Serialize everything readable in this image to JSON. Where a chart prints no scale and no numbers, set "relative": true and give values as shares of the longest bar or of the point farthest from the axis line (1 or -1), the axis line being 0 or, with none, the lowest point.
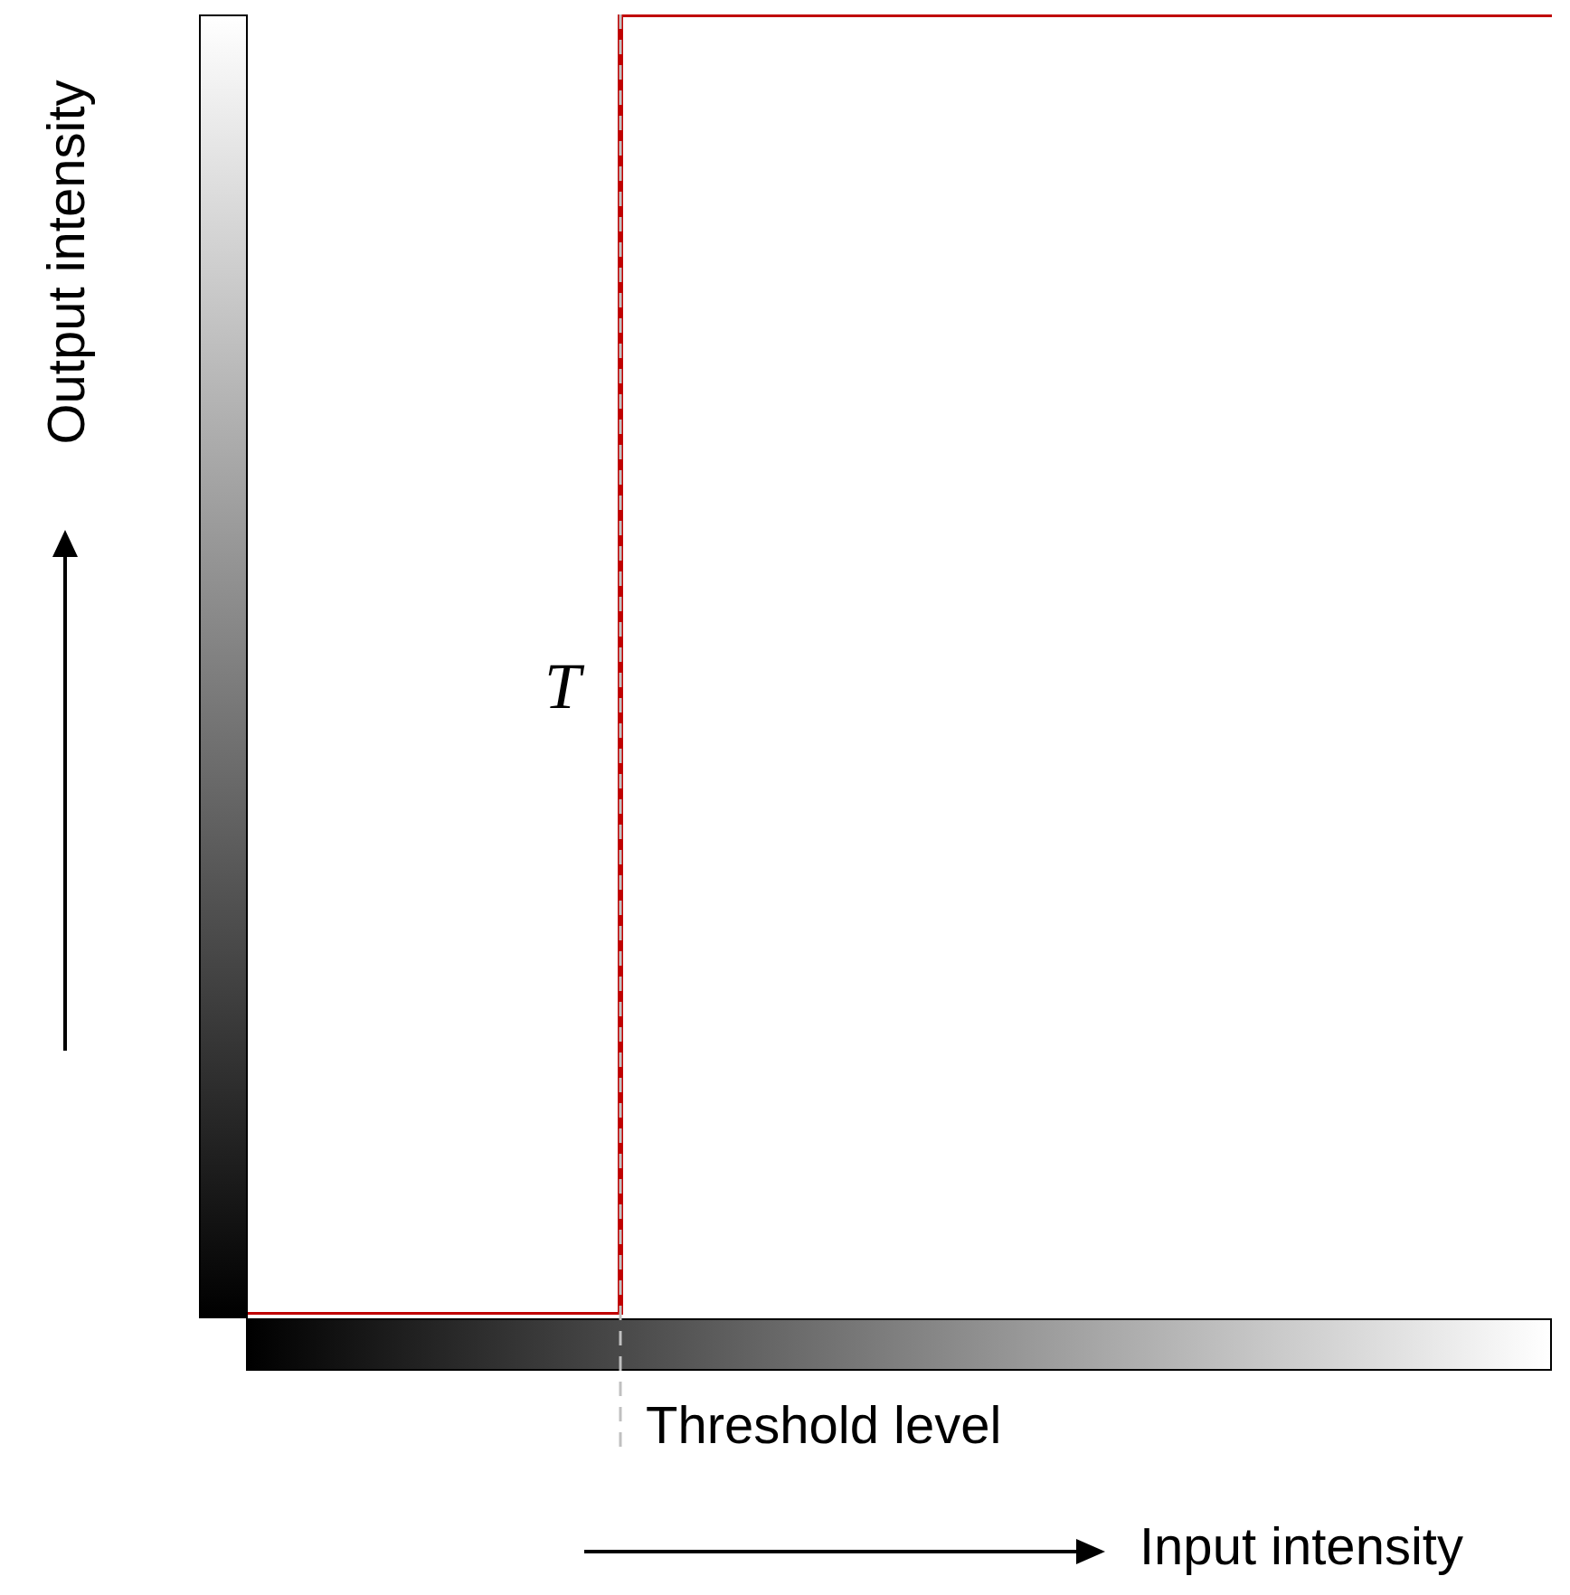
{
  "chart_data": {
    "type": "step",
    "relative": true,
    "xlabel": "Input intensity",
    "ylabel": "Output intensity",
    "categories": [
      null,
      null,
      null,
      null,
      null,
      null,
      null,
      null
    ],
    "series": [
      {
        "color": "#c00000",
        "values": [
          0,
          0,
          1,
          1,
          1,
          1,
          1,
          1
        ]
      }
    ],
    "annotations": [
      "T",
      "Threshold level"
    ],
    "grid": false,
    "legend": false,
    "marker": "none",
    "line_style": "solid"
  }
}
